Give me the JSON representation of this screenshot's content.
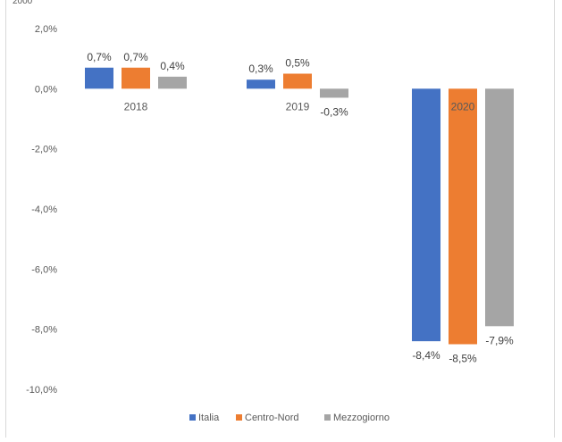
{
  "chart_data": {
    "type": "bar",
    "title": "",
    "xlabel": "",
    "ylabel": "",
    "categories": [
      "2018",
      "2019",
      "2020"
    ],
    "series": [
      {
        "name": "Italia",
        "color": "#4472c4",
        "values": [
          0.7,
          0.3,
          -8.4
        ],
        "labels": [
          "0,7%",
          "0,3%",
          "-8,4%"
        ]
      },
      {
        "name": "Centro-Nord",
        "color": "#ed7d31",
        "values": [
          0.7,
          0.5,
          -8.5
        ],
        "labels": [
          "0,7%",
          "0,5%",
          "-8,5%"
        ]
      },
      {
        "name": "Mezzogiorno",
        "color": "#a5a5a5",
        "values": [
          0.4,
          -0.3,
          -7.9
        ],
        "labels": [
          "0,4%",
          "-0,3%",
          "-7,9%"
        ]
      }
    ],
    "ylim": [
      -10,
      2
    ],
    "yticks": [
      2,
      0,
      -2,
      -4,
      -6,
      -8,
      -10
    ],
    "ytick_labels": [
      "2,0%",
      "0,0%",
      "-2,0%",
      "-4,0%",
      "-6,0%",
      "-8,0%",
      "-10,0%"
    ],
    "grid": false,
    "legend_position": "bottom"
  },
  "cutoff_text": "2000"
}
